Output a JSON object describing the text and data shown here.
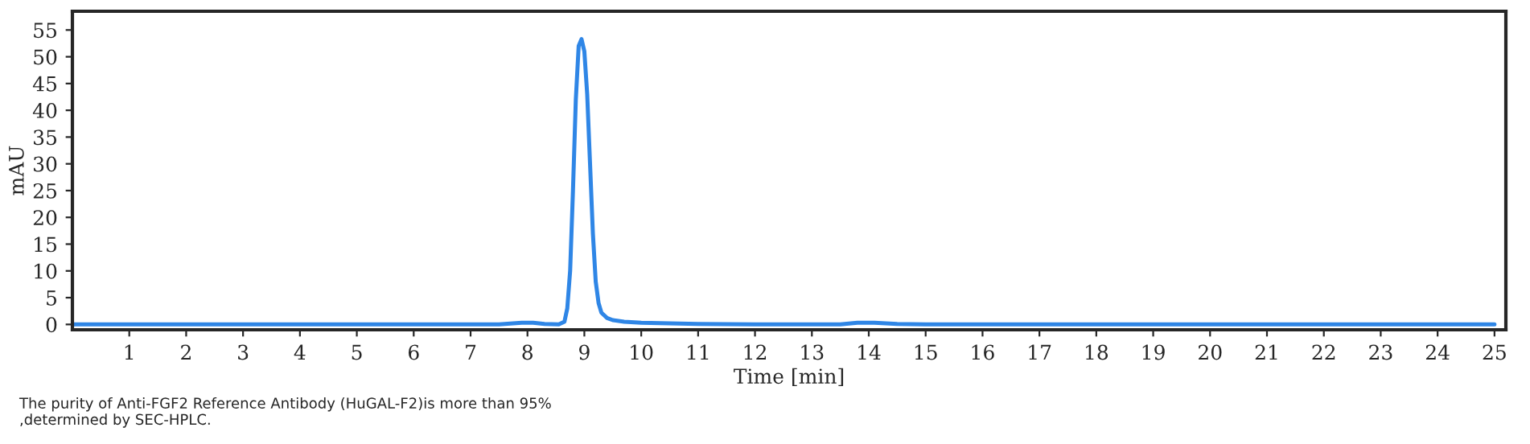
{
  "chart_data": {
    "type": "line",
    "xlabel": "Time [min]",
    "ylabel": "mAU",
    "xlim": [
      0,
      25.2
    ],
    "ylim": [
      -1,
      58.5
    ],
    "xticks": [
      1,
      2,
      3,
      4,
      5,
      6,
      7,
      8,
      9,
      10,
      11,
      12,
      13,
      14,
      15,
      16,
      17,
      18,
      19,
      20,
      21,
      22,
      23,
      24,
      25
    ],
    "yticks": [
      0,
      5,
      10,
      15,
      20,
      25,
      30,
      35,
      40,
      45,
      50,
      55
    ],
    "grid": false,
    "legend": false,
    "marker": "none",
    "line_style": "solid",
    "series": [
      {
        "color": "#2f86e6",
        "x": [
          0,
          2,
          4,
          6,
          7.5,
          7.9,
          8.1,
          8.3,
          8.55,
          8.65,
          8.7,
          8.75,
          8.8,
          8.85,
          8.9,
          8.95,
          9.0,
          9.05,
          9.1,
          9.15,
          9.2,
          9.25,
          9.3,
          9.4,
          9.5,
          9.7,
          10,
          10.5,
          11,
          12,
          13,
          13.5,
          13.8,
          14.1,
          14.5,
          15,
          17,
          20,
          23,
          25
        ],
        "values": [
          0,
          0,
          0,
          0,
          0,
          0.3,
          0.3,
          0.1,
          0,
          0.5,
          3,
          10,
          25,
          42,
          52,
          53.3,
          51,
          43,
          30,
          17,
          8,
          4,
          2.2,
          1.2,
          0.8,
          0.5,
          0.3,
          0.2,
          0.1,
          0,
          0,
          0,
          0.3,
          0.3,
          0.1,
          0,
          0,
          0,
          0,
          0
        ]
      }
    ],
    "annotations": [
      "The purity of Anti-FGF2 Reference Antibody (HuGAL-F2)is more than 95%\n,determined by SEC-HPLC."
    ]
  }
}
